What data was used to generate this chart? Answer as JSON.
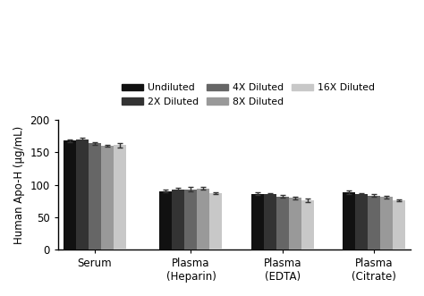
{
  "categories": [
    "Serum",
    "Plasma\n(Heparin)",
    "Plasma\n(EDTA)",
    "Plasma\n(Citrate)"
  ],
  "series": [
    {
      "label": "Undiluted",
      "color": "#111111",
      "values": [
        168,
        90,
        86,
        88
      ],
      "errors": [
        2,
        2,
        2,
        3
      ]
    },
    {
      "label": "2X Diluted",
      "color": "#333333",
      "values": [
        170,
        93,
        85,
        85
      ],
      "errors": [
        2,
        2,
        2,
        2
      ]
    },
    {
      "label": "4X Diluted",
      "color": "#666666",
      "values": [
        164,
        93,
        82,
        83
      ],
      "errors": [
        2,
        3,
        2,
        2
      ]
    },
    {
      "label": "8X Diluted",
      "color": "#999999",
      "values": [
        160,
        94,
        80,
        81
      ],
      "errors": [
        1,
        2,
        2,
        2
      ]
    },
    {
      "label": "16X Diluted",
      "color": "#c8c8c8",
      "values": [
        161,
        87,
        76,
        76
      ],
      "errors": [
        4,
        2,
        3,
        2
      ]
    }
  ],
  "ylabel": "Human Apo-H (µg/mL)",
  "ylim": [
    0,
    200
  ],
  "yticks": [
    0,
    50,
    100,
    150,
    200
  ],
  "bar_width": 0.13,
  "group_centers": [
    0.4,
    1.4,
    2.35,
    3.3
  ],
  "background_color": "#ffffff",
  "legend_ncol": 3,
  "figsize": [
    4.74,
    3.31
  ],
  "dpi": 100
}
